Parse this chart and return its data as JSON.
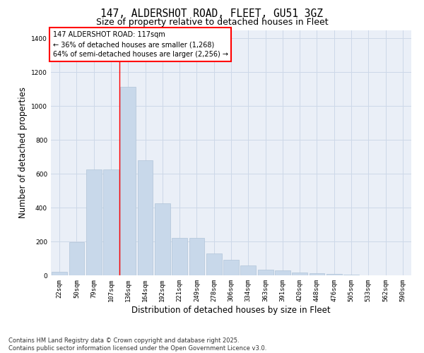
{
  "title_line1": "147, ALDERSHOT ROAD, FLEET, GU51 3GZ",
  "title_line2": "Size of property relative to detached houses in Fleet",
  "xlabel": "Distribution of detached houses by size in Fleet",
  "ylabel": "Number of detached properties",
  "categories": [
    "22sqm",
    "50sqm",
    "79sqm",
    "107sqm",
    "136sqm",
    "164sqm",
    "192sqm",
    "221sqm",
    "249sqm",
    "278sqm",
    "306sqm",
    "334sqm",
    "363sqm",
    "391sqm",
    "420sqm",
    "448sqm",
    "476sqm",
    "505sqm",
    "533sqm",
    "562sqm",
    "590sqm"
  ],
  "values": [
    20,
    195,
    625,
    625,
    1115,
    680,
    425,
    220,
    220,
    130,
    90,
    60,
    35,
    30,
    18,
    13,
    8,
    4,
    2,
    1,
    0
  ],
  "bar_color": "#c8d8ea",
  "bar_edge_color": "#b0c4d8",
  "vline_x": 4,
  "vline_color": "red",
  "annotation_text": "147 ALDERSHOT ROAD: 117sqm\n← 36% of detached houses are smaller (1,268)\n64% of semi-detached houses are larger (2,256) →",
  "annotation_box_color": "white",
  "annotation_box_edge_color": "red",
  "ylim": [
    0,
    1450
  ],
  "yticks": [
    0,
    200,
    400,
    600,
    800,
    1000,
    1200,
    1400
  ],
  "grid_color": "#cdd8e8",
  "background_color": "#eaeff7",
  "footnote": "Contains HM Land Registry data © Crown copyright and database right 2025.\nContains public sector information licensed under the Open Government Licence v3.0.",
  "title_fontsize": 10.5,
  "subtitle_fontsize": 9,
  "tick_fontsize": 6.5,
  "label_fontsize": 8.5,
  "footnote_fontsize": 6.0
}
